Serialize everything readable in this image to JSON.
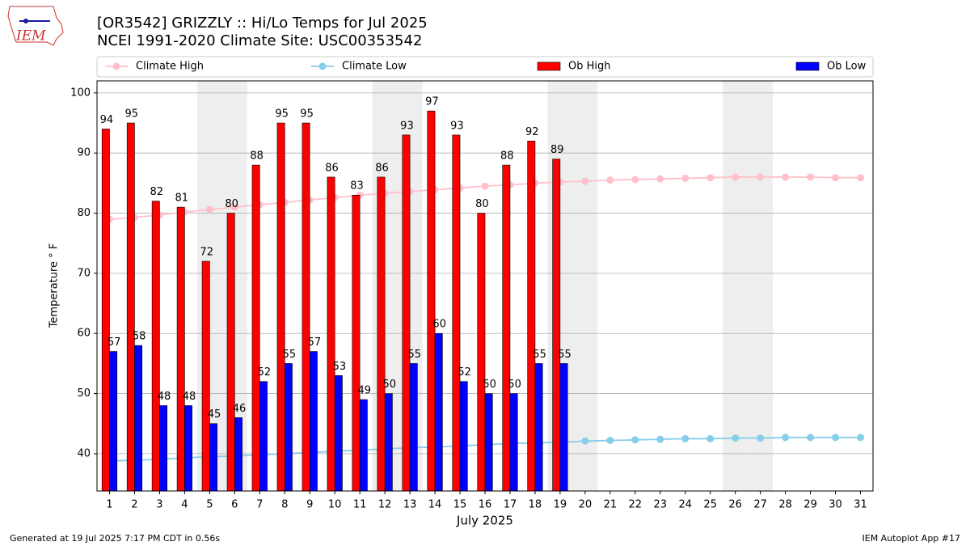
{
  "chart_data": {
    "type": "bar",
    "title": "[OR3542] GRIZZLY :: Hi/Lo Temps for Jul 2025",
    "subtitle": "NCEI 1991-2020 Climate Site: USC00353542",
    "logo_text": "IEM",
    "x_label": "July 2025",
    "y_label": "Temperature ° F",
    "footer_left": "Generated at 19 Jul 2025 7:17 PM CDT in 0.56s",
    "footer_right": "IEM Autoplot App #17",
    "categories": [
      "1",
      "2",
      "3",
      "4",
      "5",
      "6",
      "7",
      "8",
      "9",
      "10",
      "11",
      "12",
      "13",
      "14",
      "15",
      "16",
      "17",
      "18",
      "19",
      "20",
      "21",
      "22",
      "23",
      "24",
      "25",
      "26",
      "27",
      "28",
      "29",
      "30",
      "31"
    ],
    "shaded_days": [
      "5",
      "6",
      "12",
      "13",
      "19",
      "20",
      "26",
      "27"
    ],
    "ylim": [
      33.8,
      102.0
    ],
    "yticks": [
      40,
      50,
      60,
      70,
      80,
      90,
      100
    ],
    "grid": true,
    "series": [
      {
        "name": "Climate High",
        "type": "line",
        "color": "#ffc0cb",
        "values": [
          79.0,
          79.3,
          79.7,
          80.2,
          80.6,
          81.0,
          81.4,
          81.8,
          82.2,
          82.6,
          83.0,
          83.3,
          83.6,
          83.9,
          84.2,
          84.5,
          84.7,
          85.0,
          85.2,
          85.3,
          85.5,
          85.6,
          85.7,
          85.8,
          85.9,
          86.0,
          86.0,
          86.0,
          86.0,
          85.9,
          85.9
        ]
      },
      {
        "name": "Climate Low",
        "type": "line",
        "color": "#87ceeb",
        "values": [
          38.8,
          38.9,
          39.1,
          39.3,
          39.5,
          39.6,
          39.8,
          40.0,
          40.2,
          40.4,
          40.6,
          40.8,
          41.0,
          41.1,
          41.3,
          41.5,
          41.7,
          41.8,
          41.9,
          42.1,
          42.2,
          42.3,
          42.4,
          42.5,
          42.5,
          42.6,
          42.6,
          42.7,
          42.7,
          42.7,
          42.7
        ]
      },
      {
        "name": "Ob High",
        "type": "bar",
        "color": "#ff0000",
        "values": [
          94,
          95,
          82,
          81,
          72,
          80,
          88,
          95,
          95,
          86,
          83,
          86,
          93,
          97,
          93,
          80,
          88,
          92,
          89,
          null,
          null,
          null,
          null,
          null,
          null,
          null,
          null,
          null,
          null,
          null,
          null
        ]
      },
      {
        "name": "Ob Low",
        "type": "bar",
        "color": "#0000ff",
        "values": [
          57,
          58,
          48,
          48,
          45,
          46,
          52,
          55,
          57,
          53,
          49,
          50,
          55,
          60,
          52,
          50,
          50,
          55,
          55,
          null,
          null,
          null,
          null,
          null,
          null,
          null,
          null,
          null,
          null,
          null,
          null
        ]
      }
    ]
  }
}
